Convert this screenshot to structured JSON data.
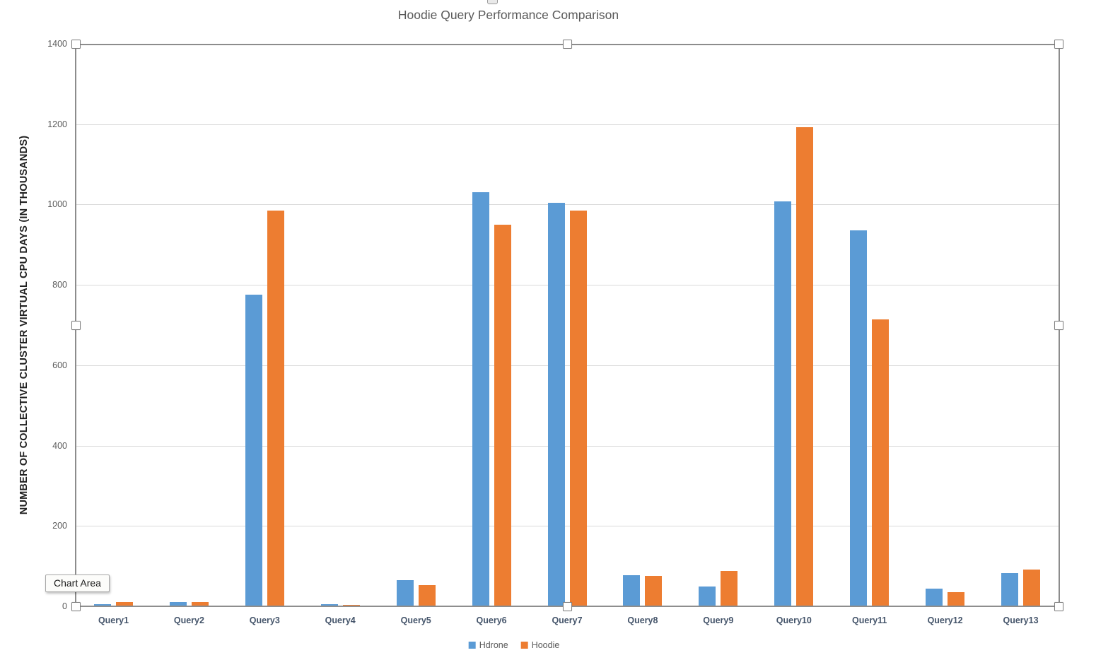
{
  "chart_data": {
    "type": "bar",
    "title": "Hoodie Query Performance Comparison",
    "ylabel": "NUMBER OF COLLECTIVE CLUSTER VIRTUAL CPU DAYS (IN THOUSANDS)",
    "xlabel": "",
    "categories": [
      "Query1",
      "Query2",
      "Query3",
      "Query4",
      "Query5",
      "Query6",
      "Query7",
      "Query8",
      "Query9",
      "Query10",
      "Query11",
      "Query12",
      "Query13"
    ],
    "series": [
      {
        "name": "Hdrone",
        "color": "#5B9BD5",
        "values": [
          5,
          10,
          775,
          5,
          65,
          1030,
          1005,
          77,
          49,
          1008,
          935,
          44,
          82
        ]
      },
      {
        "name": "Hoodie",
        "color": "#ED7D31",
        "values": [
          10,
          10,
          985,
          4,
          52,
          950,
          985,
          76,
          88,
          1193,
          715,
          35,
          91
        ]
      }
    ],
    "ylim": [
      0,
      1400
    ],
    "yticks": [
      0,
      200,
      400,
      600,
      800,
      1000,
      1200,
      1400
    ],
    "grid": true,
    "legend_position": "bottom"
  },
  "overlay": {
    "tooltip_label": "Chart Area"
  },
  "colors": {
    "series_blue": "#5B9BD5",
    "series_orange": "#ED7D31",
    "gridline": "#D9D9D9",
    "axis_line": "#8E8E8E",
    "tick_text": "#595959",
    "category_text": "#44546A",
    "title_text": "#595959",
    "selection_border": "#8C8C8C"
  }
}
